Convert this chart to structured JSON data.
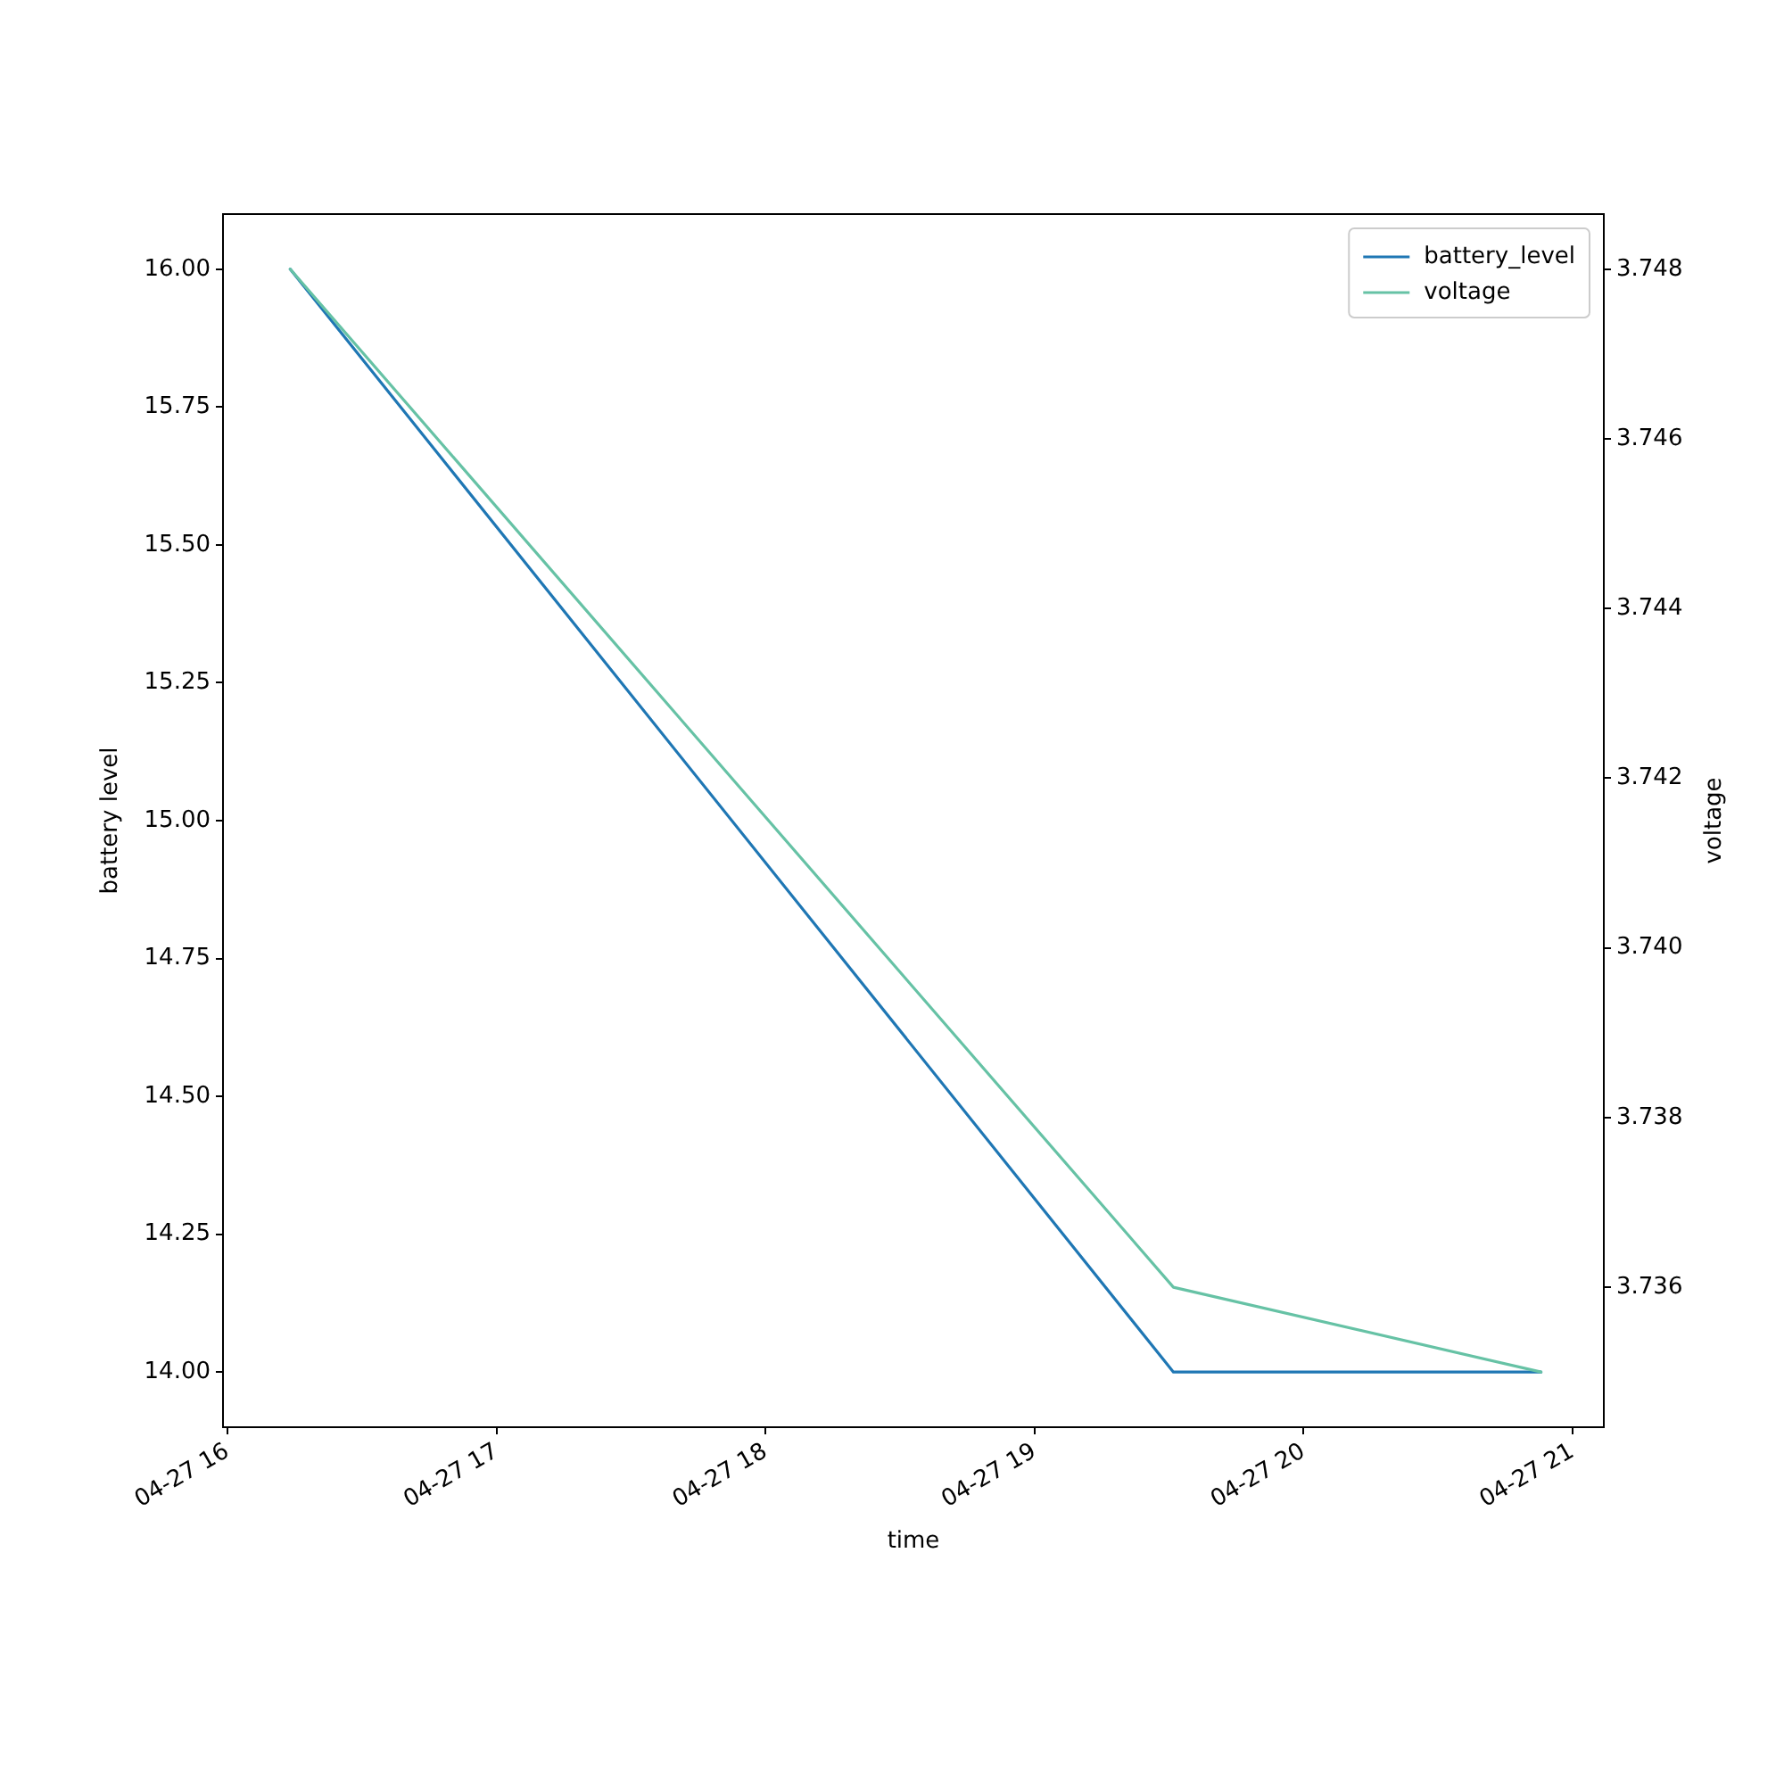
{
  "chart_data": {
    "type": "line",
    "xlabel": "time",
    "ylabel": "battery level",
    "y2label": "voltage",
    "x": [
      "--04-27T16:14",
      "--04-27T19:31",
      "--04-27T20:53"
    ],
    "series": [
      {
        "name": "battery_level",
        "color": "#1f77b4",
        "values": [
          16,
          14,
          14
        ]
      },
      {
        "name": "voltage",
        "color": "#66c2a5",
        "values": [
          3.748,
          3.736,
          3.735
        ],
        "axis": "y2"
      }
    ],
    "xlim": [
      "--04-27T15:59",
      "--04-27T21:07"
    ],
    "xticks": [
      {
        "value": "--04-27T16:00",
        "label": "04-27 16"
      },
      {
        "value": "--04-27T17:00",
        "label": "04-27 17"
      },
      {
        "value": "--04-27T18:00",
        "label": "04-27 18"
      },
      {
        "value": "--04-27T19:00",
        "label": "04-27 19"
      },
      {
        "value": "--04-27T20:00",
        "label": "04-27 20"
      },
      {
        "value": "--04-27T21:00",
        "label": "04-27 21"
      }
    ],
    "ylim": [
      13.9,
      16.1
    ],
    "yticks": [
      {
        "value": 14,
        "label": "14.00"
      },
      {
        "value": 14.25,
        "label": "14.25"
      },
      {
        "value": 14.5,
        "label": "14.50"
      },
      {
        "value": 14.75,
        "label": "14.75"
      },
      {
        "value": 15,
        "label": "15.00"
      },
      {
        "value": 15.25,
        "label": "15.25"
      },
      {
        "value": 15.5,
        "label": "15.50"
      },
      {
        "value": 15.75,
        "label": "15.75"
      },
      {
        "value": 16,
        "label": "16.00"
      }
    ],
    "y2lim": [
      3.73435,
      3.74865
    ],
    "y2ticks": [
      3.736,
      3.738,
      {
        "value": 3.74,
        "label": "3.740"
      },
      3.742,
      3.744,
      3.746,
      3.748
    ],
    "legend": "top right"
  }
}
